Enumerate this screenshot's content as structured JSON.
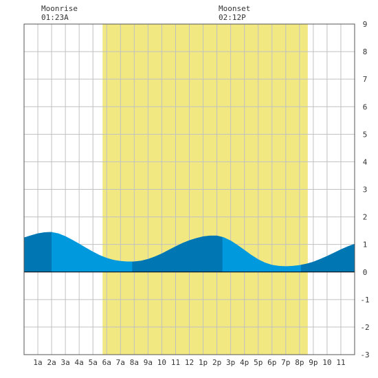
{
  "header": {
    "moonrise_label": "Moonrise",
    "moonrise_time": "01:23A",
    "moonset_label": "Moonset",
    "moonset_time": "02:12P"
  },
  "chart_data": {
    "type": "area",
    "title": "",
    "xlabel": "",
    "ylabel": "",
    "xlim": [
      0,
      24
    ],
    "ylim": [
      -3,
      9
    ],
    "grid": true,
    "x_tick_labels": [
      "1a",
      "2a",
      "3a",
      "4a",
      "5a",
      "6a",
      "7a",
      "8a",
      "9a",
      "10",
      "11",
      "12",
      "1p",
      "2p",
      "3p",
      "4p",
      "5p",
      "6p",
      "7p",
      "8p",
      "9p",
      "10",
      "11"
    ],
    "y_ticks": [
      -3,
      -2,
      -1,
      0,
      1,
      2,
      3,
      4,
      5,
      6,
      7,
      8,
      9
    ],
    "daylight": {
      "start": 5.7,
      "end": 20.6
    },
    "night_shade": [
      [
        0,
        2.0
      ],
      [
        7.85,
        14.4
      ],
      [
        20.1,
        24
      ]
    ],
    "series": [
      {
        "x": [
          0.0,
          0.5,
          1.0,
          1.5,
          2.0,
          2.5,
          3.0,
          3.5,
          4.0,
          4.5,
          5.0,
          5.5,
          6.0,
          6.5,
          7.0,
          7.5,
          8.0,
          8.5,
          9.0,
          9.5,
          10.0,
          10.5,
          11.0,
          11.5,
          12.0,
          12.5,
          13.0,
          13.5,
          14.0,
          14.5,
          15.0,
          15.5,
          16.0,
          16.5,
          17.0,
          17.5,
          18.0,
          18.5,
          19.0,
          19.5,
          20.0,
          20.5,
          21.0,
          21.5,
          22.0,
          22.5,
          23.0,
          23.5,
          24.0
        ],
        "values": [
          1.25,
          1.33,
          1.4,
          1.44,
          1.45,
          1.4,
          1.3,
          1.17,
          1.03,
          0.88,
          0.74,
          0.61,
          0.51,
          0.44,
          0.4,
          0.38,
          0.38,
          0.41,
          0.47,
          0.56,
          0.67,
          0.8,
          0.93,
          1.05,
          1.15,
          1.23,
          1.29,
          1.32,
          1.32,
          1.26,
          1.14,
          0.98,
          0.8,
          0.62,
          0.46,
          0.34,
          0.26,
          0.22,
          0.21,
          0.22,
          0.25,
          0.3,
          0.37,
          0.47,
          0.58,
          0.7,
          0.82,
          0.93,
          1.02
        ]
      }
    ]
  },
  "colors": {
    "daylight": "#f2e882",
    "tide": "#0099dd",
    "tide_dark": "#0077b3",
    "grid": "#c0c0c0",
    "frame": "#555555"
  }
}
